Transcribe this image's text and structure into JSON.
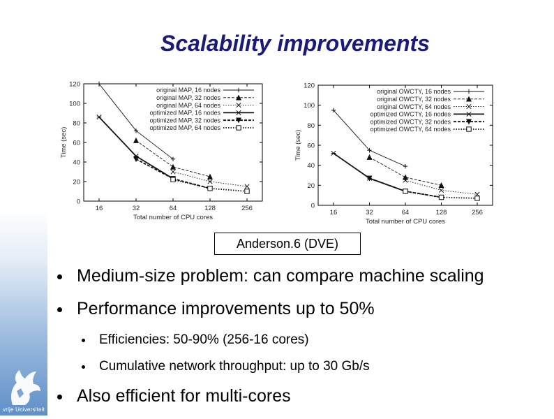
{
  "slide": {
    "title": "Scalability improvements",
    "caption": "Anderson.6 (DVE)",
    "bullets": [
      {
        "text": "Medium-size problem: can compare machine scaling",
        "level": 1
      },
      {
        "text": "Performance improvements up to 50%",
        "level": 1
      },
      {
        "text": "Efficiencies: 50-90% (256-16 cores)",
        "level": 2
      },
      {
        "text": "Cumulative network throughput: up to 30 Gb/s",
        "level": 2
      },
      {
        "text": "Also efficient for multi-cores",
        "level": 1
      }
    ],
    "logo_text": "vrije Universiteit"
  },
  "chart_data": [
    {
      "type": "line",
      "title": "",
      "xlabel": "Total number of CPU cores",
      "ylabel": "Time (sec)",
      "categories": [
        "16",
        "32",
        "64",
        "128",
        "256"
      ],
      "x_scale": "log2",
      "ylim": [
        0,
        120
      ],
      "yticks": [
        0,
        20,
        40,
        60,
        80,
        100,
        120
      ],
      "legend_position": "top-right",
      "grid": false,
      "series": [
        {
          "name": "original MAP, 16 nodes",
          "marker": "plus",
          "style": "solid",
          "weight": "thin",
          "values": [
            120,
            72,
            43,
            null,
            null
          ]
        },
        {
          "name": "original MAP, 32 nodes",
          "marker": "triangle",
          "style": "dashed",
          "weight": "thin",
          "values": [
            null,
            62,
            35,
            25,
            null
          ]
        },
        {
          "name": "original MAP, 64 nodes",
          "marker": "x",
          "style": "dotted",
          "weight": "thin",
          "values": [
            null,
            null,
            30,
            20,
            15
          ]
        },
        {
          "name": "optimized MAP, 16 nodes",
          "marker": "star",
          "style": "solid",
          "weight": "thick",
          "values": [
            86,
            46,
            23,
            null,
            null
          ]
        },
        {
          "name": "optimized MAP, 32 nodes",
          "marker": "triangle-down",
          "style": "dashed",
          "weight": "thick",
          "values": [
            null,
            43,
            23,
            13,
            null
          ]
        },
        {
          "name": "optimized MAP, 64 nodes",
          "marker": "square",
          "style": "dotted",
          "weight": "thick",
          "values": [
            null,
            null,
            22,
            13,
            10
          ]
        }
      ]
    },
    {
      "type": "line",
      "title": "",
      "xlabel": "Total number of CPU cores",
      "ylabel": "Time (sec)",
      "categories": [
        "16",
        "32",
        "64",
        "128",
        "256"
      ],
      "x_scale": "log2",
      "ylim": [
        0,
        120
      ],
      "yticks": [
        0,
        20,
        40,
        60,
        80,
        100,
        120
      ],
      "legend_position": "top-right",
      "grid": false,
      "series": [
        {
          "name": "original OWCTY, 16 nodes",
          "marker": "plus",
          "style": "solid",
          "weight": "thin",
          "values": [
            95,
            55,
            39,
            null,
            null
          ]
        },
        {
          "name": "original OWCTY, 32 nodes",
          "marker": "triangle",
          "style": "dashed",
          "weight": "thin",
          "values": [
            null,
            48,
            28,
            20,
            null
          ]
        },
        {
          "name": "original OWCTY, 64 nodes",
          "marker": "x",
          "style": "dotted",
          "weight": "thin",
          "values": [
            null,
            null,
            25,
            15,
            11
          ]
        },
        {
          "name": "optimized OWCTY, 16 nodes",
          "marker": "star",
          "style": "solid",
          "weight": "thick",
          "values": [
            52,
            27,
            14,
            null,
            null
          ]
        },
        {
          "name": "optimized OWCTY, 32 nodes",
          "marker": "triangle-down",
          "style": "dashed",
          "weight": "thick",
          "values": [
            null,
            27,
            14,
            8,
            null
          ]
        },
        {
          "name": "optimized OWCTY, 64 nodes",
          "marker": "square",
          "style": "dotted",
          "weight": "thick",
          "values": [
            null,
            null,
            14,
            8,
            7
          ]
        }
      ]
    }
  ]
}
